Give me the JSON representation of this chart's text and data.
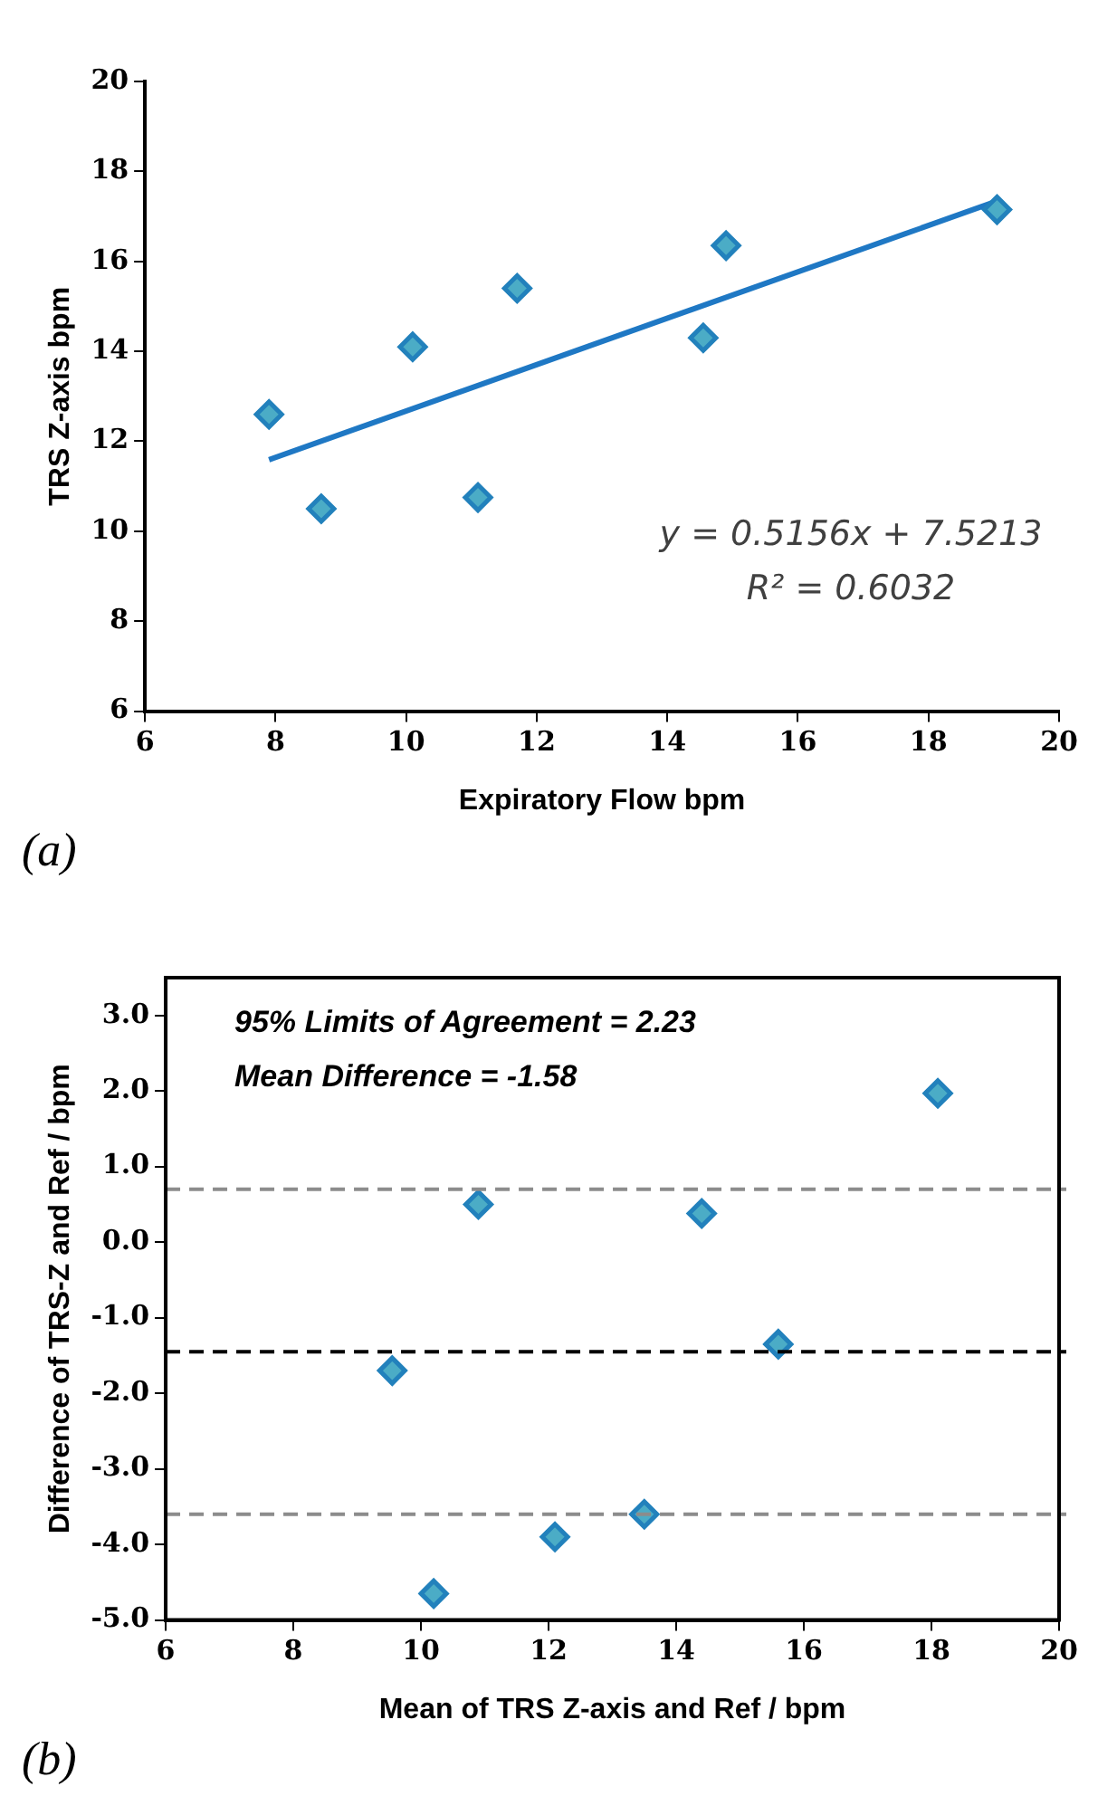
{
  "chart_data": [
    {
      "type": "scatter",
      "xlabel": "Expiratory Flow bpm",
      "ylabel": "TRS Z-axis bpm",
      "legend": false,
      "grid": false,
      "xlim": [
        6,
        20
      ],
      "xticks": [
        6,
        8,
        10,
        12,
        14,
        16,
        18,
        20
      ],
      "ylim": [
        6,
        20
      ],
      "yticks": [
        6,
        8,
        10,
        12,
        14,
        16,
        18,
        20
      ],
      "series": [
        {
          "color": "#4bacc6",
          "marker": "diamond",
          "x": [
            7.9,
            8.7,
            10.1,
            11.1,
            11.7,
            14.55,
            14.9,
            19.05
          ],
          "values": [
            12.6,
            10.5,
            14.1,
            10.75,
            15.4,
            14.3,
            16.35,
            17.15
          ]
        },
        {
          "type": "line",
          "color": "#1f78c4",
          "marker": "none",
          "x": [
            7.9,
            19.05
          ],
          "values": [
            11.59,
            17.34
          ]
        }
      ],
      "annotations": [
        "y = 0.5156x + 7.5213",
        "R² = 0.6032",
        "(a)"
      ]
    },
    {
      "type": "scatter",
      "xlabel": "Mean of TRS Z-axis and Ref / bpm",
      "ylabel": "Difference of TRS-Z and Ref / bpm",
      "legend": false,
      "grid": false,
      "xlim": [
        6,
        20
      ],
      "xticks": [
        6,
        8,
        10,
        12,
        14,
        16,
        18,
        20
      ],
      "ylim": [
        -5,
        3.5
      ],
      "yticks": [
        {
          "value": -5,
          "label": "-5.0"
        },
        {
          "value": -4,
          "label": "-4.0"
        },
        {
          "value": -3,
          "label": "-3.0"
        },
        {
          "value": -2,
          "label": "-2.0"
        },
        {
          "value": -1,
          "label": "-1.0"
        },
        {
          "value": 0,
          "label": "0.0"
        },
        {
          "value": 1,
          "label": "1.0"
        },
        {
          "value": 2,
          "label": "2.0"
        },
        {
          "value": 3,
          "label": "3.0"
        }
      ],
      "series": [
        {
          "color": "#4bacc6",
          "marker": "diamond",
          "x": [
            9.55,
            10.2,
            10.9,
            12.1,
            13.5,
            14.4,
            15.6,
            18.1
          ],
          "values": [
            -1.7,
            -4.65,
            0.5,
            -3.9,
            -3.6,
            0.38,
            -1.35,
            1.97
          ]
        }
      ],
      "ref_lines": [
        {
          "axis": "y",
          "value": 0.7,
          "color": "#8c8c8c",
          "line_style": "dashed"
        },
        {
          "axis": "y",
          "value": -1.45,
          "color": "#000000",
          "line_style": "dashed"
        },
        {
          "axis": "y",
          "value": -3.6,
          "color": "#8c8c8c",
          "line_style": "dashed"
        }
      ],
      "annotations": [
        "95% Limits of Agreement = 2.23",
        "Mean Difference = -1.58",
        "(b)"
      ]
    }
  ]
}
